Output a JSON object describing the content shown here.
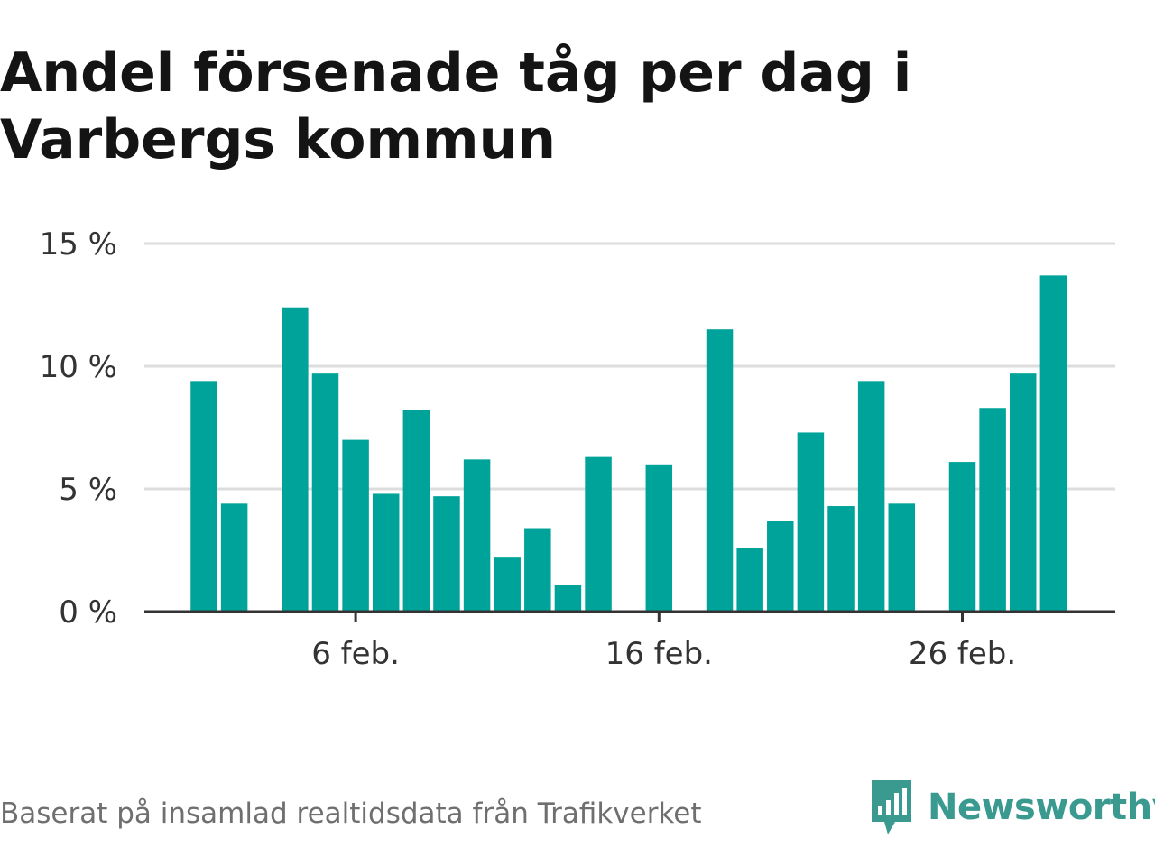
{
  "title": "Andel försenade tåg per dag i Varbergs kommun",
  "source": "Baserat på insamlad realtidsdata från Trafikverket",
  "brand": {
    "name": "Newsworthy",
    "logo_icon": "newsworthy-logo-icon"
  },
  "colors": {
    "bar": "#00a39a",
    "grid": "#dddddd",
    "axis": "#333333",
    "brand": "#3a9a90"
  },
  "chart_data": {
    "type": "bar",
    "title": "Andel försenade tåg per dag i Varbergs kommun",
    "xlabel": "",
    "ylabel": "",
    "x": [
      "1 feb.",
      "2 feb.",
      "3 feb.",
      "4 feb.",
      "5 feb.",
      "6 feb.",
      "7 feb.",
      "8 feb.",
      "9 feb.",
      "10 feb.",
      "11 feb.",
      "12 feb.",
      "13 feb.",
      "14 feb.",
      "15 feb.",
      "16 feb.",
      "17 feb.",
      "18 feb.",
      "19 feb.",
      "20 feb.",
      "21 feb.",
      "22 feb.",
      "23 feb.",
      "24 feb.",
      "25 feb.",
      "26 feb.",
      "27 feb.",
      "28 feb.",
      "29 feb."
    ],
    "values": [
      9.4,
      4.4,
      null,
      12.4,
      9.7,
      7.0,
      4.8,
      8.2,
      4.7,
      6.2,
      2.2,
      3.4,
      1.1,
      6.3,
      null,
      6.0,
      null,
      11.5,
      2.6,
      3.7,
      7.3,
      4.3,
      9.4,
      4.4,
      null,
      6.1,
      8.3,
      9.7,
      13.7
    ],
    "ylim": [
      0,
      15
    ],
    "yticks": [
      0,
      5,
      10,
      15
    ],
    "ytick_labels": [
      "0 %",
      "5 %",
      "10 %",
      "15 %"
    ],
    "xticks": [
      "6 feb.",
      "16 feb.",
      "26 feb."
    ],
    "grid": true,
    "legend": "none"
  }
}
